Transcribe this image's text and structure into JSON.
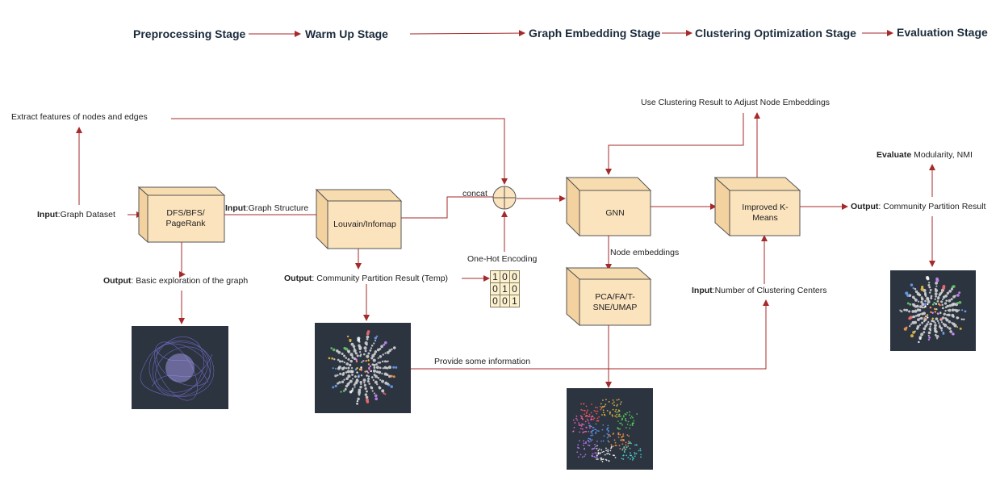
{
  "stages": [
    "Preprocessing Stage",
    "Warm Up Stage",
    "Graph Embedding Stage",
    "Clustering Optimization Stage",
    "Evaluation Stage"
  ],
  "boxes": {
    "dfs": "DFS/BFS/ PageRank",
    "louvain": "Louvain/Infomap",
    "gnn": "GNN",
    "kmeans": "Improved K-Means",
    "pca": "PCA/FA/T-SNE/UMAP"
  },
  "labels": {
    "extract": "Extract features of nodes and edges",
    "input_dataset_b": "Input",
    "input_dataset": ":Graph Dataset",
    "input_struct_b": "Input",
    "input_struct": ":Graph Structure",
    "output_basic_b": "Output",
    "output_basic": ": Basic exploration of the graph",
    "output_temp_b": "Output",
    "output_temp": ": Community Partition Result (Temp)",
    "concat": "concat",
    "onehot": "One-Hot Encoding",
    "node_emb": "Node embeddings",
    "use_clustering": "Use Clustering Result to Adjust Node Embeddings",
    "input_centers_b": "Input",
    "input_centers": ":Number of Clustering Centers",
    "provide_info": "Provide some information",
    "evaluate_b": "Evaluate",
    "evaluate": " Modularity, NMI",
    "output_final_b": "Output",
    "output_final": ": Community Partition Result"
  },
  "matrix": [
    [
      "1",
      "0",
      "0"
    ],
    [
      "0",
      "1",
      "0"
    ],
    [
      "0",
      "0",
      "1"
    ]
  ],
  "colors": {
    "arrow": "#a52a2a",
    "box_front": "#fbe3bd",
    "box_side": "#f3d2a0",
    "box_edge": "#555555",
    "thumb_bg": "#2c3440"
  }
}
